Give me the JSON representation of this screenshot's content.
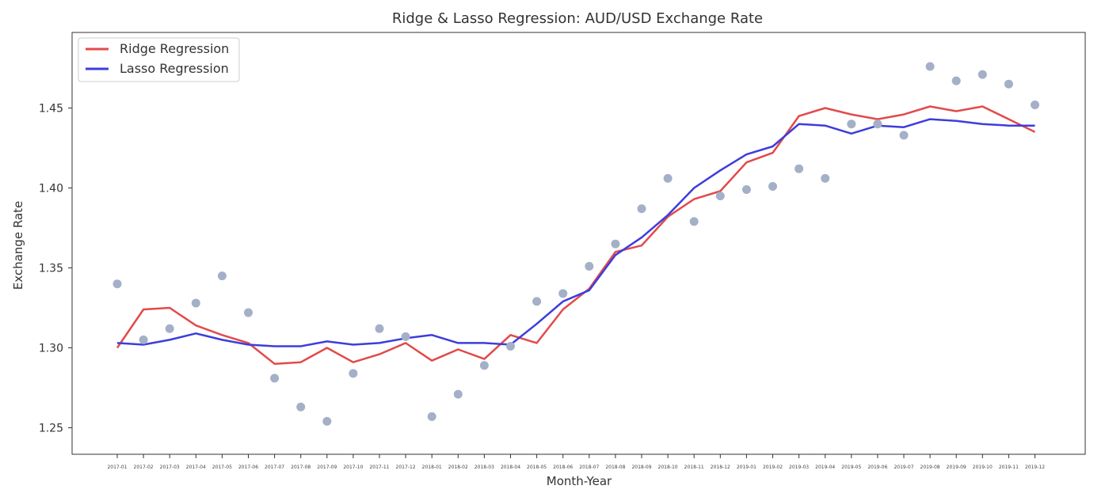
{
  "chart_data": {
    "type": "line",
    "title": "Ridge & Lasso Regression: AUD/USD Exchange Rate",
    "xlabel": "Month-Year",
    "ylabel": "Exchange Rate",
    "ylim": [
      1.232,
      1.498
    ],
    "yticks": [
      "1.25",
      "1.30",
      "1.35",
      "1.40",
      "1.45"
    ],
    "grid": false,
    "legend_position": "top-left",
    "categories": [
      "2017-01",
      "2017-02",
      "2017-03",
      "2017-04",
      "2017-05",
      "2017-06",
      "2017-07",
      "2017-08",
      "2017-09",
      "2017-10",
      "2017-11",
      "2017-12",
      "2018-01",
      "2018-02",
      "2018-03",
      "2018-04",
      "2018-05",
      "2018-06",
      "2018-07",
      "2018-08",
      "2018-09",
      "2018-10",
      "2018-11",
      "2018-12",
      "2019-01",
      "2019-02",
      "2019-03",
      "2019-04",
      "2019-05",
      "2019-06",
      "2019-07",
      "2019-08",
      "2019-09",
      "2019-10",
      "2019-11",
      "2019-12"
    ],
    "series": [
      {
        "name": "Ridge Regression",
        "kind": "line",
        "color": "#e24a4a",
        "values": [
          1.3,
          1.324,
          1.325,
          1.314,
          1.308,
          1.303,
          1.29,
          1.291,
          1.3,
          1.291,
          1.296,
          1.303,
          1.292,
          1.299,
          1.293,
          1.308,
          1.303,
          1.324,
          1.337,
          1.36,
          1.364,
          1.382,
          1.393,
          1.398,
          1.416,
          1.422,
          1.445,
          1.45,
          1.446,
          1.443,
          1.446,
          1.451,
          1.448,
          1.451,
          1.443,
          1.435
        ]
      },
      {
        "name": "Lasso Regression",
        "kind": "line",
        "color": "#3d3ddc",
        "values": [
          1.303,
          1.302,
          1.305,
          1.309,
          1.305,
          1.302,
          1.301,
          1.301,
          1.304,
          1.302,
          1.303,
          1.306,
          1.308,
          1.303,
          1.303,
          1.302,
          1.315,
          1.329,
          1.336,
          1.358,
          1.369,
          1.383,
          1.4,
          1.411,
          1.421,
          1.426,
          1.44,
          1.439,
          1.434,
          1.439,
          1.438,
          1.443,
          1.442,
          1.44,
          1.439,
          1.439
        ]
      },
      {
        "name": "",
        "kind": "scatter",
        "color": "#a4b0c8",
        "values": [
          1.34,
          1.305,
          1.312,
          1.328,
          1.345,
          1.322,
          1.281,
          1.263,
          1.254,
          1.284,
          1.312,
          1.307,
          1.257,
          1.271,
          1.289,
          1.301,
          1.329,
          1.334,
          1.351,
          1.365,
          1.387,
          1.406,
          1.379,
          1.395,
          1.399,
          1.401,
          1.412,
          1.406,
          1.44,
          1.44,
          1.433,
          1.476,
          1.467,
          1.471,
          1.465,
          1.452
        ]
      }
    ]
  }
}
